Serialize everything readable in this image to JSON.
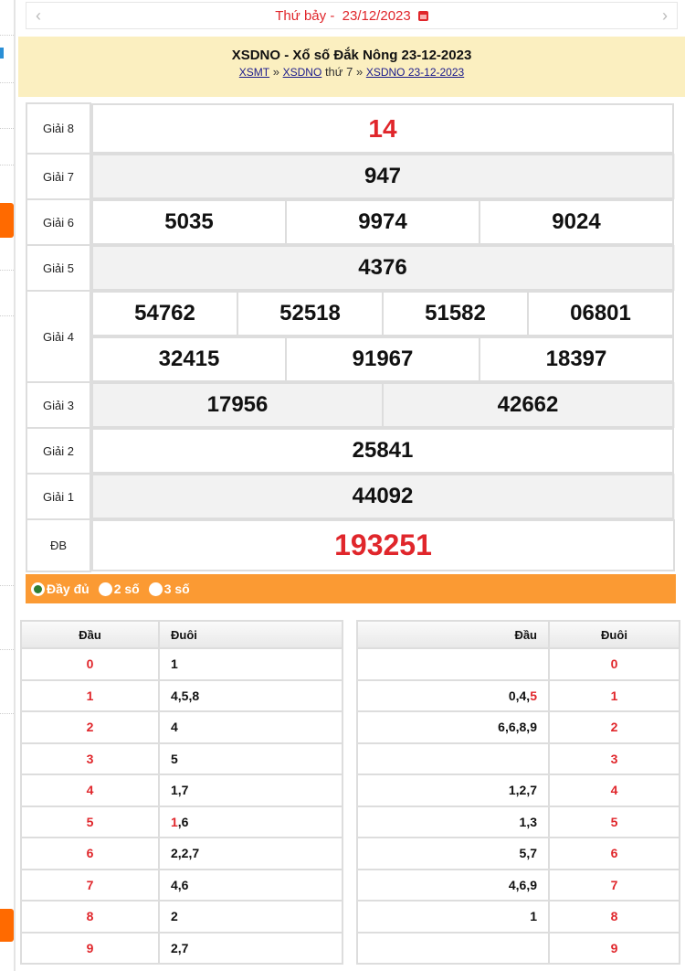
{
  "date_bar": {
    "text": "Thứ bảy -  23/12/2023",
    "prev_icon": "chevron-left",
    "next_icon": "chevron-right",
    "calendar_icon": "calendar"
  },
  "header": {
    "title": "XSDNO - Xổ số Đắk Nông 23-12-2023",
    "crumbs": [
      {
        "label": "XSMT"
      },
      {
        "sep": "»"
      },
      {
        "label": "XSDNO"
      },
      {
        "text": "thứ 7"
      },
      {
        "sep": "»"
      },
      {
        "label": "XSDNO 23-12-2023"
      }
    ]
  },
  "results": [
    {
      "label": "Giải 8",
      "numbers": [
        [
          "14"
        ]
      ],
      "red": true
    },
    {
      "label": "Giải 7",
      "numbers": [
        [
          "947"
        ]
      ]
    },
    {
      "label": "Giải 6",
      "numbers": [
        [
          "5035",
          "9974",
          "9024"
        ]
      ]
    },
    {
      "label": "Giải 5",
      "numbers": [
        [
          "4376"
        ]
      ]
    },
    {
      "label": "Giải 4",
      "numbers": [
        [
          "54762",
          "52518",
          "51582",
          "06801"
        ],
        [
          "32415",
          "91967",
          "18397"
        ]
      ]
    },
    {
      "label": "Giải 3",
      "numbers": [
        [
          "17956",
          "42662"
        ]
      ]
    },
    {
      "label": "Giải 2",
      "numbers": [
        [
          "25841"
        ]
      ]
    },
    {
      "label": "Giải 1",
      "numbers": [
        [
          "44092"
        ]
      ]
    },
    {
      "label": "ĐB",
      "numbers": [
        [
          "193251"
        ]
      ],
      "red": true
    }
  ],
  "options": [
    {
      "label": "Đầy đủ",
      "selected": true
    },
    {
      "label": "2 số",
      "selected": false
    },
    {
      "label": "3 số",
      "selected": false
    }
  ],
  "loto_head": {
    "headers": [
      "Đầu",
      "Đuôi"
    ],
    "rows": [
      [
        "0",
        [
          [
            "1"
          ]
        ]
      ],
      [
        "1",
        [
          [
            "4,5,8"
          ]
        ]
      ],
      [
        "2",
        [
          [
            "4"
          ]
        ]
      ],
      [
        "3",
        [
          [
            "5"
          ]
        ]
      ],
      [
        "4",
        [
          [
            "1,7"
          ]
        ]
      ],
      [
        "5",
        [
          [
            "1",
            true
          ],
          [
            ",6"
          ]
        ]
      ],
      [
        "6",
        [
          [
            "2,2,7"
          ]
        ]
      ],
      [
        "7",
        [
          [
            "4,6"
          ]
        ]
      ],
      [
        "8",
        [
          [
            "2"
          ]
        ]
      ],
      [
        "9",
        [
          [
            "2,7"
          ]
        ]
      ]
    ]
  },
  "loto_tail": {
    "headers": [
      "Đầu",
      "Đuôi"
    ],
    "rows": [
      [
        [],
        "0"
      ],
      [
        [
          [
            "0,4,"
          ],
          [
            "5",
            true
          ]
        ],
        "1"
      ],
      [
        [
          [
            "6,6,8,9"
          ]
        ],
        "2"
      ],
      [
        [],
        "3"
      ],
      [
        [
          [
            "1,2,7"
          ]
        ],
        "4"
      ],
      [
        [
          [
            "1,3"
          ]
        ],
        "5"
      ],
      [
        [
          [
            "5,7"
          ]
        ],
        "6"
      ],
      [
        [
          [
            "4,6,9"
          ]
        ],
        "7"
      ],
      [
        [
          [
            "1"
          ]
        ],
        "8"
      ],
      [
        [],
        "9"
      ]
    ]
  },
  "colors": {
    "accent_red": "#e0262b",
    "orange": "#fb9a33",
    "header_bg": "#fbefc0"
  }
}
